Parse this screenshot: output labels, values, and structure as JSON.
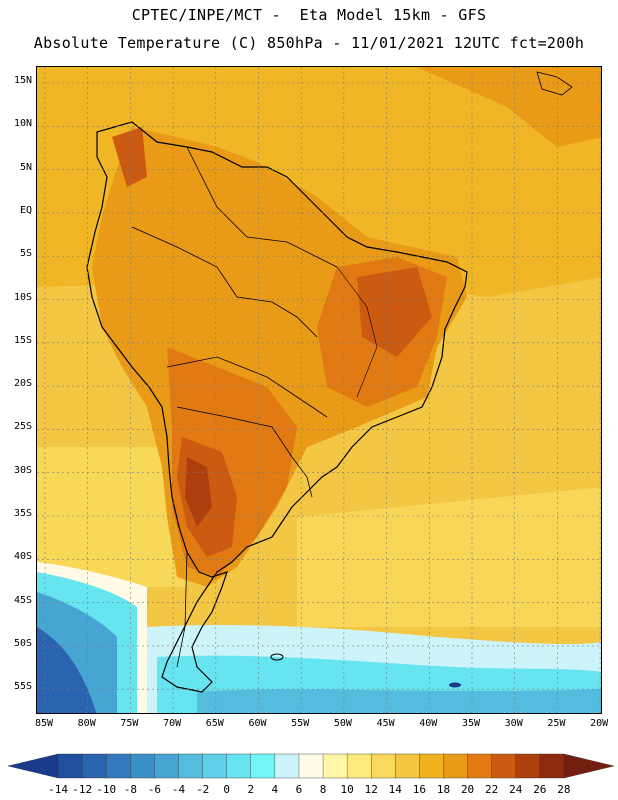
{
  "header": {
    "line1": "CPTEC/INPE/MCT -  Eta Model 15km - GFS",
    "line2": "Absolute Temperature (C) 850hPa - 11/01/2021 12UTC fct=200h"
  },
  "map": {
    "lat_labels": [
      "15N",
      "10N",
      "5N",
      "EQ",
      "5S",
      "10S",
      "15S",
      "20S",
      "25S",
      "30S",
      "35S",
      "40S",
      "45S",
      "50S",
      "55S"
    ],
    "lon_labels": [
      "85W",
      "80W",
      "75W",
      "70W",
      "65W",
      "60W",
      "55W",
      "50W",
      "45W",
      "40W",
      "35W",
      "30W",
      "25W",
      "20W"
    ]
  },
  "colorbar": {
    "labels": [
      "-14",
      "-12",
      "-10",
      "-8",
      "-6",
      "-4",
      "-2",
      "0",
      "2",
      "4",
      "6",
      "8",
      "10",
      "12",
      "14",
      "16",
      "18",
      "20",
      "22",
      "24",
      "26",
      "28"
    ],
    "colors": [
      "#1a3a8c",
      "#1f4f9e",
      "#2a64b0",
      "#3279bd",
      "#3a8fc8",
      "#46a5d3",
      "#53bcdf",
      "#5ed0e8",
      "#66e4f0",
      "#72f5f7",
      "#cdf4fb",
      "#fffbe6",
      "#fff7a6",
      "#fdea7b",
      "#f8d95c",
      "#f3c644",
      "#efb321",
      "#e99a17",
      "#e17a12",
      "#cc5a10",
      "#ad3e0e",
      "#8e2a0d",
      "#721f10"
    ]
  }
}
